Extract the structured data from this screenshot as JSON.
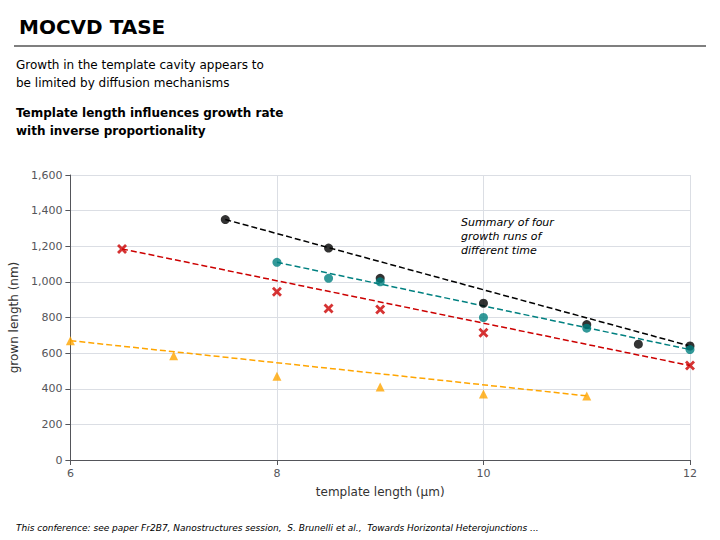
{
  "chart_data": {
    "type": "scatter",
    "title": "MOCVD TASE",
    "subtitle": [
      "Growth in the template cavity appears to\nbe limited by diffusion mechanisms",
      "Template length influences growth rate\nwith inverse proportionality"
    ],
    "xlabel": "template length (μm)",
    "ylabel": "grown length (nm)",
    "annotation": "Summary of four\ngrowth runs of\ndifferent time",
    "footer": "This conference: see paper Fr2B7, Nanostructures session,  S. Brunelli et al.,  Towards Horizontal Heterojunctions ...",
    "xlim": [
      6,
      12
    ],
    "ylim": [
      0,
      1600
    ],
    "xticks": [
      6,
      8,
      10,
      12
    ],
    "yticks": [
      0,
      200,
      400,
      600,
      800,
      1000,
      1200,
      1400,
      1600
    ],
    "grid": true,
    "series": [
      {
        "color": "#000000",
        "marker": "circle",
        "x": [
          7.5,
          8.5,
          9.0,
          10.0,
          11.0,
          11.5,
          12.0
        ],
        "values": [
          1350,
          1190,
          1020,
          880,
          760,
          650,
          640
        ],
        "fit": {
          "x": [
            7.5,
            12.0
          ],
          "values": [
            1350,
            640
          ],
          "line_style": "dashed"
        }
      },
      {
        "color": "#008080",
        "marker": "circle",
        "x": [
          8.0,
          8.5,
          9.0,
          10.0,
          11.0,
          12.0
        ],
        "values": [
          1110,
          1020,
          1000,
          800,
          740,
          620
        ],
        "fit": {
          "x": [
            8.0,
            12.0
          ],
          "values": [
            1110,
            620
          ],
          "line_style": "dashed"
        }
      },
      {
        "color": "#cc0000",
        "marker": "x",
        "x": [
          6.5,
          8.0,
          8.5,
          9.0,
          10.0,
          12.0
        ],
        "values": [
          1185,
          945,
          850,
          845,
          715,
          530
        ],
        "fit": {
          "x": [
            6.5,
            12.0
          ],
          "values": [
            1185,
            530
          ],
          "line_style": "dashed"
        }
      },
      {
        "color": "#ffa500",
        "marker": "triangle",
        "x": [
          6.0,
          7.0,
          8.0,
          9.0,
          10.0,
          11.0
        ],
        "values": [
          670,
          585,
          470,
          410,
          370,
          360
        ],
        "fit": {
          "x": [
            6.0,
            11.0
          ],
          "values": [
            670,
            360
          ],
          "line_style": "dashed"
        }
      }
    ]
  }
}
